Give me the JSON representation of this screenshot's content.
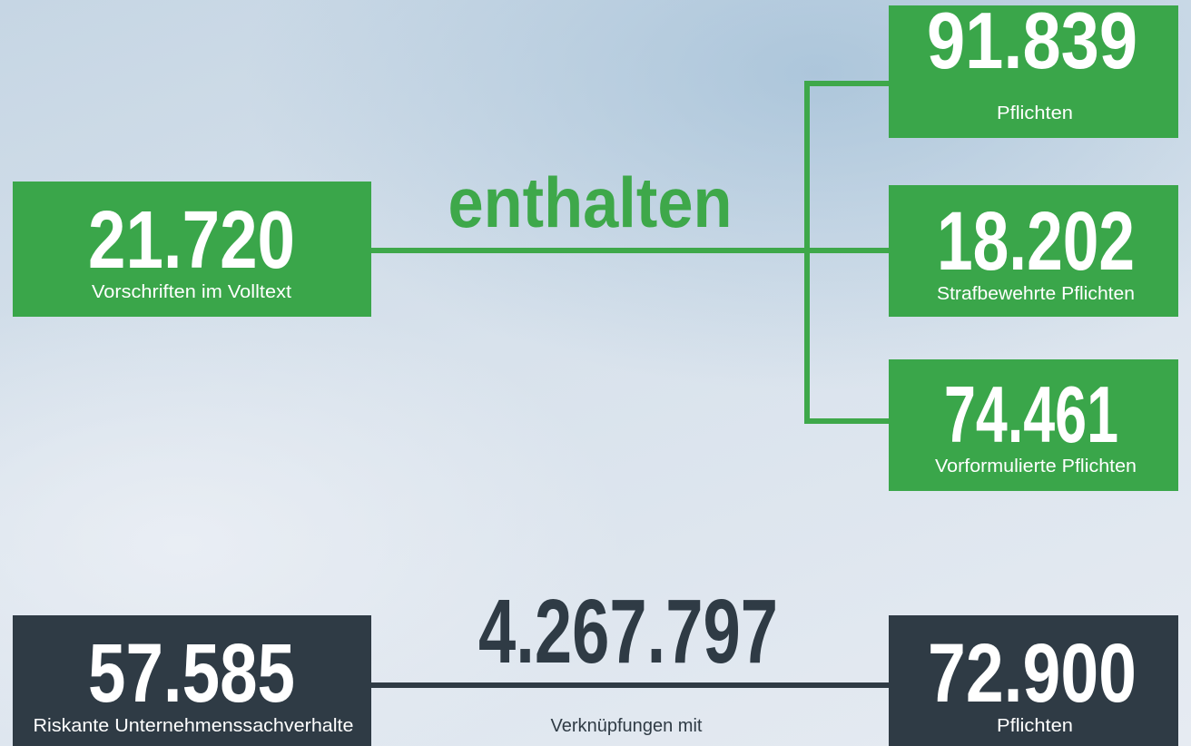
{
  "top": {
    "source": {
      "number": "21.720",
      "label": "Vorschriften im Volltext"
    },
    "connector": "enthalten",
    "targets": [
      {
        "number": "91.839",
        "label": "Pflichten"
      },
      {
        "number": "18.202",
        "label": "Strafbewehrte Pflichten"
      },
      {
        "number": "74.461",
        "label": "Vorformulierte Pflichten"
      }
    ]
  },
  "bottom": {
    "source": {
      "number": "57.585",
      "label": "Riskante Unternehmenssachverhalte"
    },
    "connector": {
      "number": "4.267.797",
      "label": "Verknüpfungen mit"
    },
    "target": {
      "number": "72.900",
      "label": "Pflichten"
    }
  }
}
